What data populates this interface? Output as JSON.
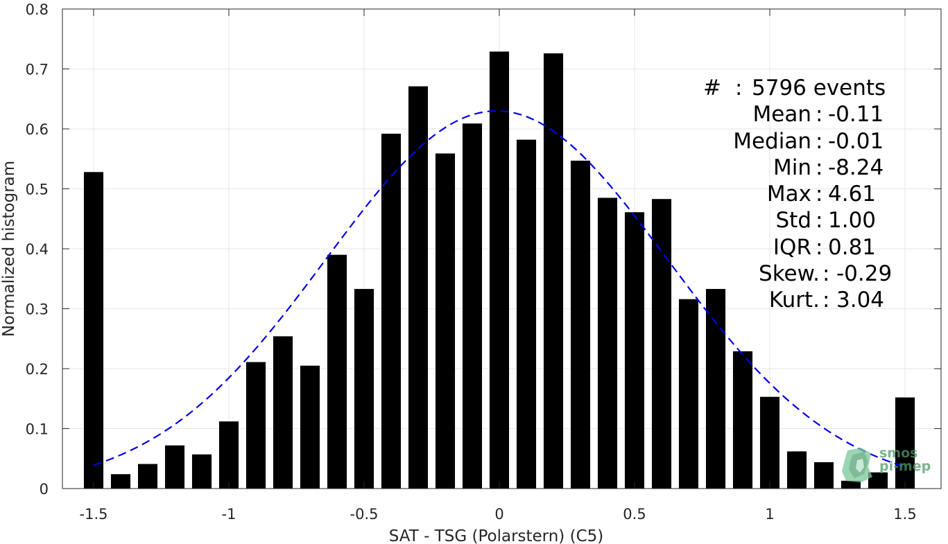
{
  "chart_data": {
    "type": "bar",
    "xlabel": "SAT - TSG (Polarstern) (C5)",
    "ylabel": "Normalized histogram",
    "xlim": [
      -1.55,
      1.55
    ],
    "ylim": [
      0,
      0.8
    ],
    "xticks": [
      "-1.5",
      "-1",
      "-0.5",
      "0",
      "0.5",
      "1",
      "1.5"
    ],
    "xtick_values": [
      -1.5,
      -1,
      -0.5,
      0,
      0.5,
      1,
      1.5
    ],
    "yticks": [
      "0",
      "0.1",
      "0.2",
      "0.3",
      "0.4",
      "0.5",
      "0.6",
      "0.7",
      "0.8"
    ],
    "ytick_values": [
      0,
      0.1,
      0.2,
      0.3,
      0.4,
      0.5,
      0.6,
      0.7,
      0.8
    ],
    "grid": true,
    "bin_width": 0.1,
    "bars": {
      "x": [
        -1.5,
        -1.4,
        -1.3,
        -1.2,
        -1.1,
        -1.0,
        -0.9,
        -0.8,
        -0.7,
        -0.6,
        -0.5,
        -0.4,
        -0.3,
        -0.2,
        -0.1,
        0.0,
        0.1,
        0.2,
        0.3,
        0.4,
        0.5,
        0.6,
        0.7,
        0.8,
        0.9,
        1.0,
        1.1,
        1.2,
        1.3,
        1.4,
        1.5
      ],
      "values": [
        0.528,
        0.024,
        0.041,
        0.072,
        0.057,
        0.112,
        0.211,
        0.254,
        0.205,
        0.39,
        0.333,
        0.592,
        0.671,
        0.559,
        0.609,
        0.729,
        0.582,
        0.726,
        0.547,
        0.485,
        0.461,
        0.483,
        0.316,
        0.333,
        0.229,
        0.153,
        0.062,
        0.044,
        0.013,
        0.027,
        0.152
      ],
      "color": "#000000"
    },
    "fit_curve": {
      "style": "dashed",
      "color": "#0000ee",
      "mean": -0.01,
      "std": 0.632,
      "peak": 0.63,
      "x_range": [
        -1.5,
        1.5
      ]
    }
  },
  "stats": [
    {
      "label": "#",
      "value": "5796 events"
    },
    {
      "label": "Mean",
      "value": "-0.11"
    },
    {
      "label": "Median",
      "value": "-0.01"
    },
    {
      "label": "Min",
      "value": "-8.24"
    },
    {
      "label": "Max",
      "value": "4.61"
    },
    {
      "label": "Std",
      "value": "1.00"
    },
    {
      "label": "IQR",
      "value": "0.81"
    },
    {
      "label": "Skew.",
      "value": "-0.29"
    },
    {
      "label": "Kurt.",
      "value": "3.04"
    }
  ],
  "logo": {
    "line1": "smos",
    "line2": "pi-mep",
    "color": "#4f9a6a",
    "icon": "smos-pi-mep-logo-icon"
  }
}
